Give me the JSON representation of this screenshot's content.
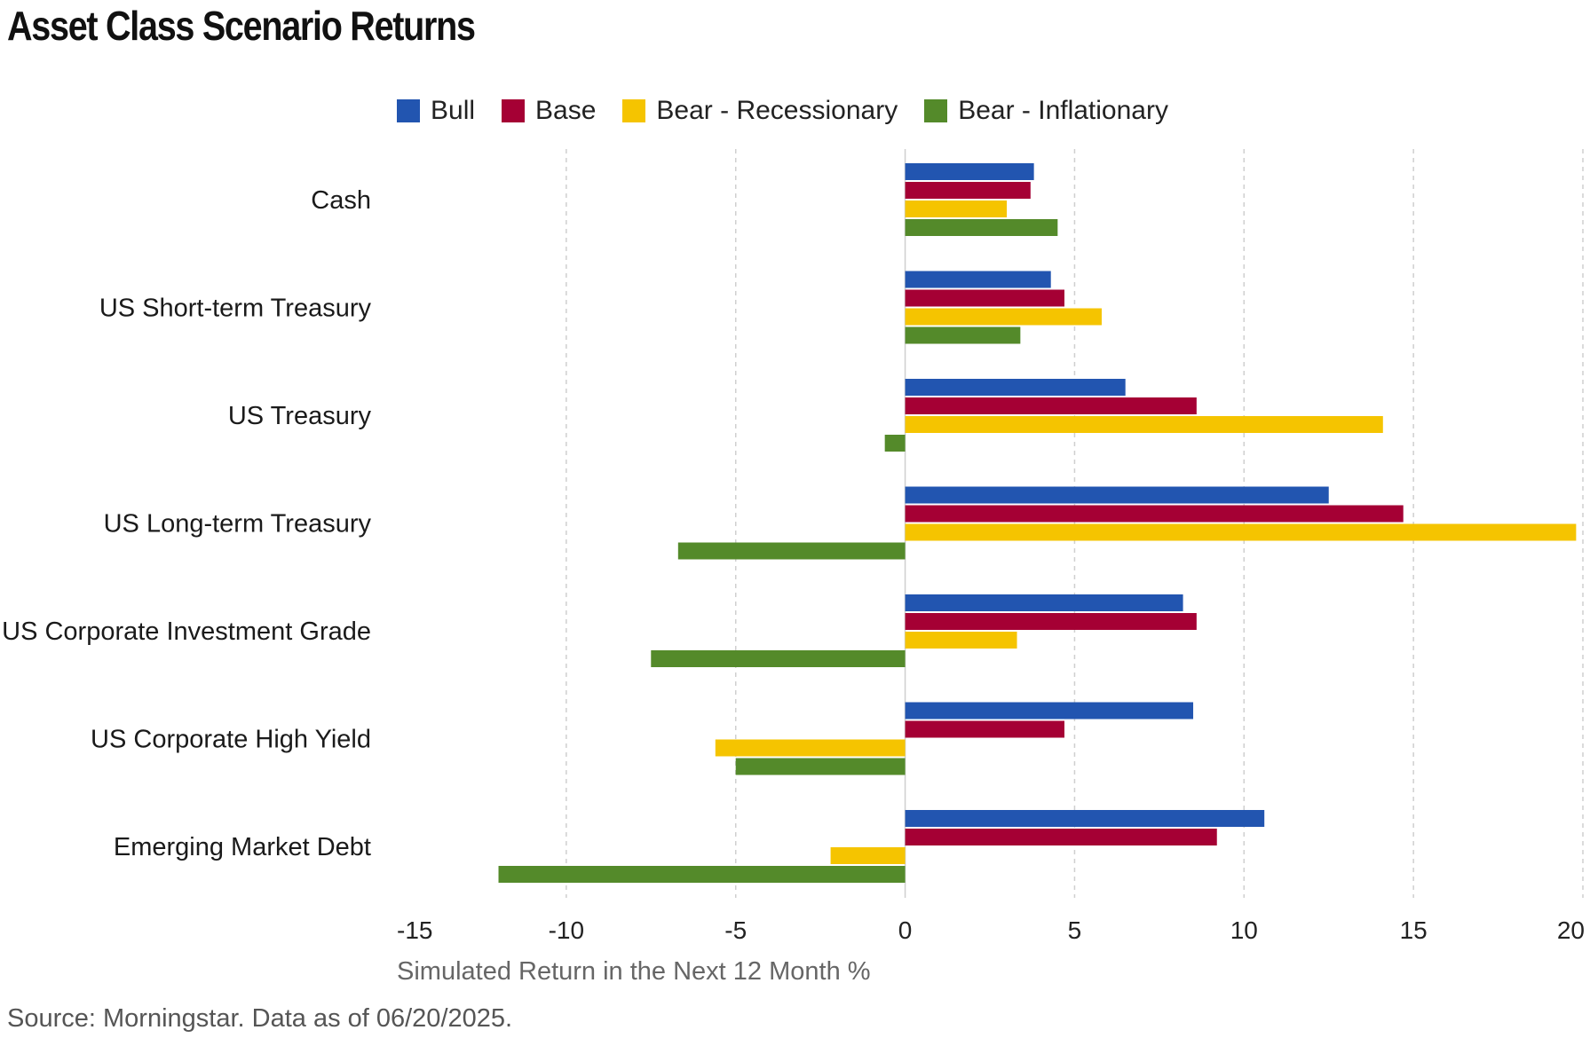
{
  "title": "Asset Class Scenario Returns",
  "source": "Source: Morningstar. Data as of 06/20/2025.",
  "chart_data": {
    "type": "bar",
    "orientation": "horizontal",
    "title": "Asset Class Scenario Returns",
    "xlabel": "Simulated Return in the Next 12 Month %",
    "ylabel": "",
    "xlim": [
      -15,
      20
    ],
    "xticks": [
      -15,
      -10,
      -5,
      0,
      5,
      10,
      15,
      20
    ],
    "grid": "vertical dashed",
    "legend_position": "top",
    "categories": [
      "Cash",
      "US Short-term Treasury",
      "US Treasury",
      "US Long-term Treasury",
      "US Corporate Investment Grade",
      "US Corporate High Yield",
      "Emerging Market Debt"
    ],
    "series": [
      {
        "name": "Bull",
        "color": "#2255b0",
        "values": [
          3.8,
          4.3,
          6.5,
          12.5,
          8.2,
          8.5,
          10.6
        ]
      },
      {
        "name": "Base",
        "color": "#a50034",
        "values": [
          3.7,
          4.7,
          8.6,
          14.7,
          8.6,
          4.7,
          9.2
        ]
      },
      {
        "name": "Bear - Recessionary",
        "color": "#f5c400",
        "values": [
          3.0,
          5.8,
          14.1,
          19.8,
          3.3,
          -5.6,
          -2.2
        ]
      },
      {
        "name": "Bear - Inflationary",
        "color": "#548a2a",
        "values": [
          4.5,
          3.4,
          -0.6,
          -6.7,
          -7.5,
          -5.0,
          -12.0
        ]
      }
    ]
  }
}
